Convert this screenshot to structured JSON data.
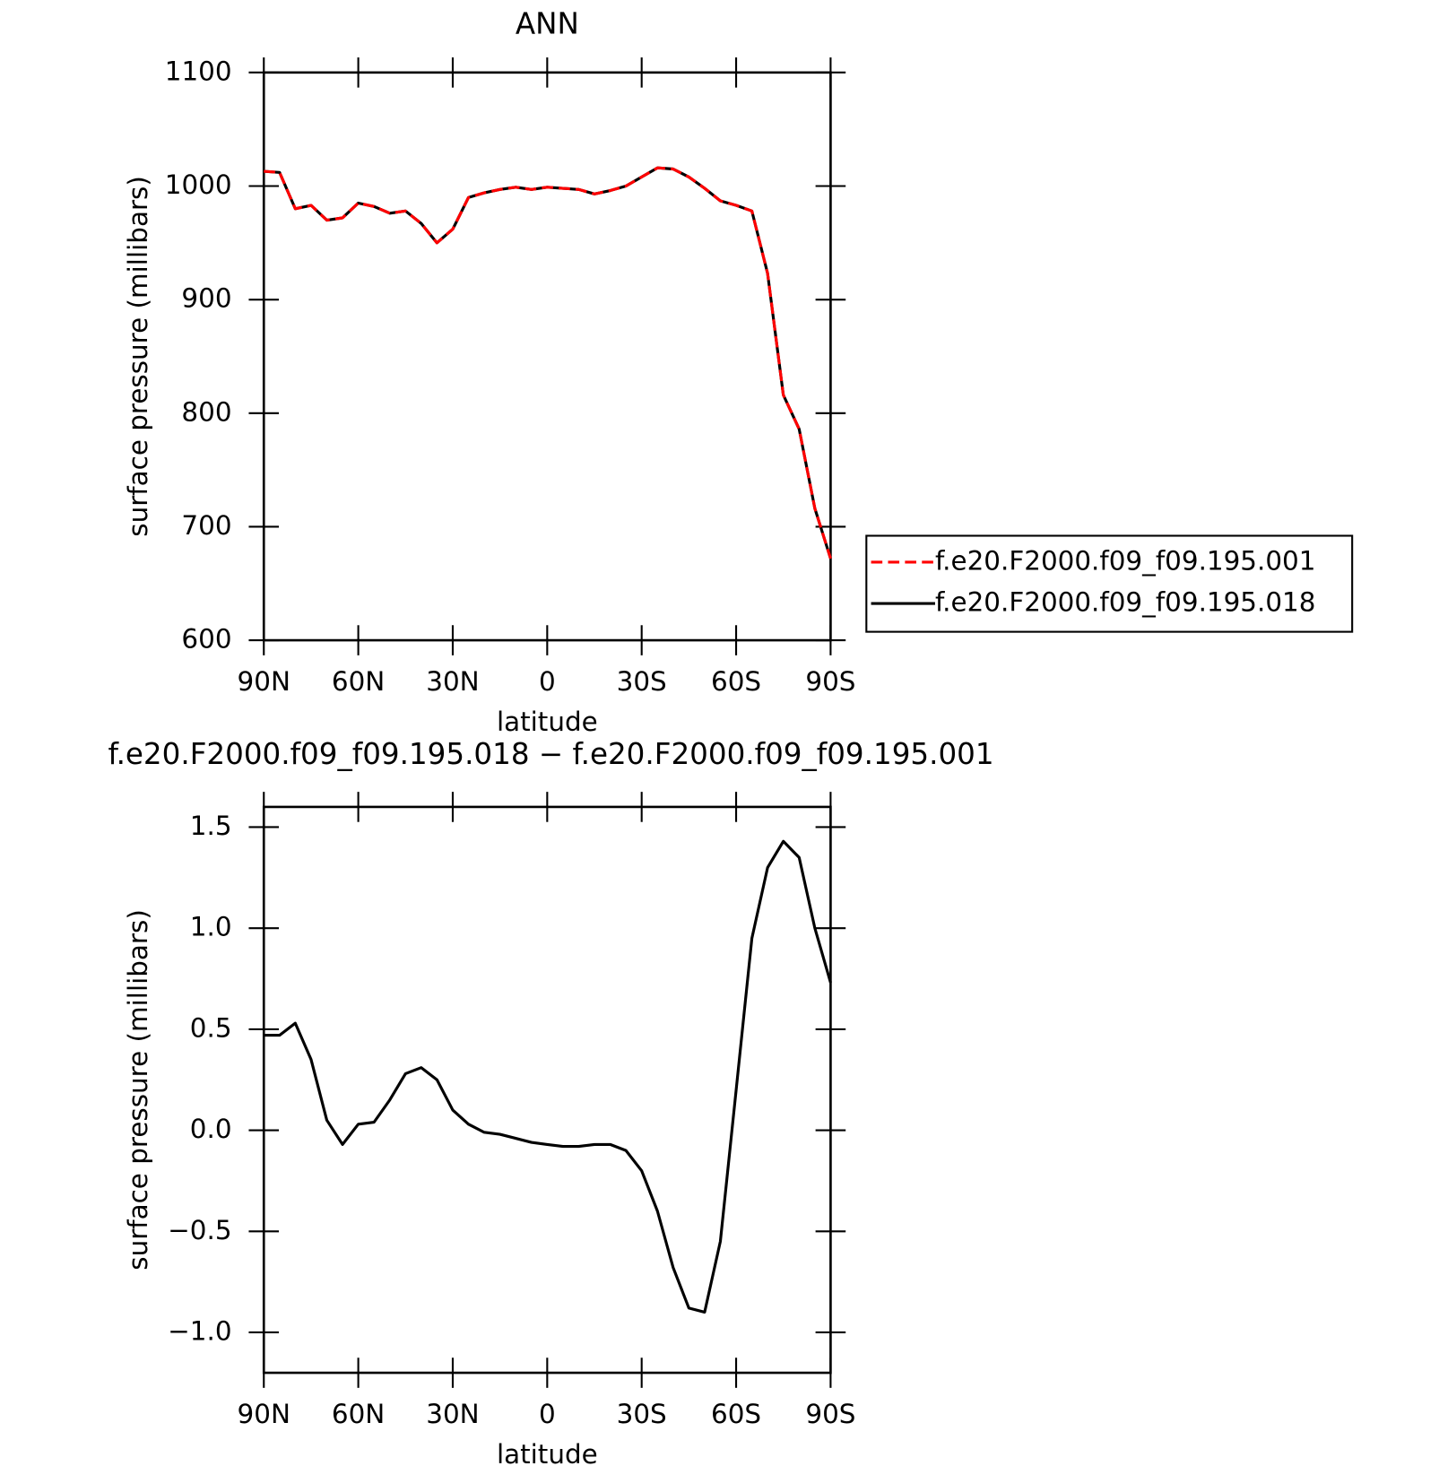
{
  "chart_data": [
    {
      "type": "line",
      "title": "ANN",
      "xlabel": "latitude",
      "ylabel": "surface pressure (millibars)",
      "x": [
        90,
        85,
        80,
        75,
        70,
        65,
        60,
        55,
        50,
        45,
        40,
        35,
        30,
        25,
        20,
        15,
        10,
        5,
        0,
        -5,
        -10,
        -15,
        -20,
        -25,
        -30,
        -35,
        -40,
        -45,
        -50,
        -55,
        -60,
        -65,
        -70,
        -75,
        -80,
        -85,
        -90
      ],
      "series": [
        {
          "name": "f.e20.F2000.f09_f09.195.001",
          "color": "#ff0000",
          "style": "dashed",
          "values": [
            1013,
            1012,
            980,
            983,
            970,
            972,
            985,
            982,
            976,
            978,
            967,
            950,
            962,
            990,
            994,
            997,
            999,
            997,
            999,
            998,
            997,
            993,
            996,
            1000,
            1008,
            1016,
            1015,
            1008,
            998,
            987,
            983,
            978,
            923,
            816,
            786,
            716,
            672
          ]
        },
        {
          "name": "f.e20.F2000.f09_f09.195.018",
          "color": "#000000",
          "style": "solid",
          "values": [
            1013,
            1012,
            980,
            983,
            970,
            972,
            985,
            982,
            976,
            978,
            967,
            950,
            962,
            990,
            994,
            997,
            999,
            997,
            999,
            998,
            997,
            993,
            996,
            1000,
            1008,
            1016,
            1015,
            1008,
            998,
            987,
            983,
            978,
            923,
            816,
            786,
            716,
            672
          ]
        }
      ],
      "xlim": [
        90,
        -90
      ],
      "xticks": [
        {
          "value": 90,
          "label": "90N"
        },
        {
          "value": 60,
          "label": "60N"
        },
        {
          "value": 30,
          "label": "30N"
        },
        0,
        {
          "value": -30,
          "label": "30S"
        },
        {
          "value": -60,
          "label": "60S"
        },
        {
          "value": -90,
          "label": "90S"
        }
      ],
      "ylim": [
        600,
        1100
      ],
      "yticks": [
        600,
        700,
        800,
        900,
        1000,
        1100
      ],
      "legend": "outside-right"
    },
    {
      "type": "line",
      "title": "f.e20.F2000.f09_f09.195.018 − f.e20.F2000.f09_f09.195.001",
      "xlabel": "latitude",
      "ylabel": "surface pressure (millibars)",
      "x": [
        90,
        85,
        80,
        75,
        70,
        65,
        60,
        55,
        50,
        45,
        40,
        35,
        30,
        25,
        20,
        15,
        10,
        5,
        0,
        -5,
        -10,
        -15,
        -20,
        -25,
        -30,
        -35,
        -40,
        -45,
        -50,
        -55,
        -60,
        -65,
        -70,
        -75,
        -80,
        -85,
        -90
      ],
      "series": [
        {
          "color": "#000000",
          "style": "solid",
          "values": [
            0.47,
            0.47,
            0.53,
            0.35,
            0.05,
            -0.07,
            0.03,
            0.04,
            0.15,
            0.28,
            0.31,
            0.25,
            0.1,
            0.03,
            -0.01,
            -0.02,
            -0.04,
            -0.06,
            -0.07,
            -0.08,
            -0.08,
            -0.07,
            -0.07,
            -0.1,
            -0.2,
            -0.4,
            -0.68,
            -0.88,
            -0.9,
            -0.55,
            0.2,
            0.95,
            1.3,
            1.43,
            1.35,
            1.0,
            0.73
          ]
        }
      ],
      "xlim": [
        90,
        -90
      ],
      "xticks": [
        {
          "value": 90,
          "label": "90N"
        },
        {
          "value": 60,
          "label": "60N"
        },
        {
          "value": 30,
          "label": "30N"
        },
        0,
        {
          "value": -30,
          "label": "30S"
        },
        {
          "value": -60,
          "label": "60S"
        },
        {
          "value": -90,
          "label": "90S"
        }
      ],
      "ylim": [
        -1.2,
        1.6
      ],
      "yticks": [
        {
          "value": -1,
          "label": "−1.0"
        },
        {
          "value": -0.5,
          "label": "−0.5"
        },
        {
          "value": 0,
          "label": "0.0"
        },
        {
          "value": 0.5,
          "label": "0.5"
        },
        {
          "value": 1,
          "label": "1.0"
        },
        1.5
      ]
    }
  ]
}
